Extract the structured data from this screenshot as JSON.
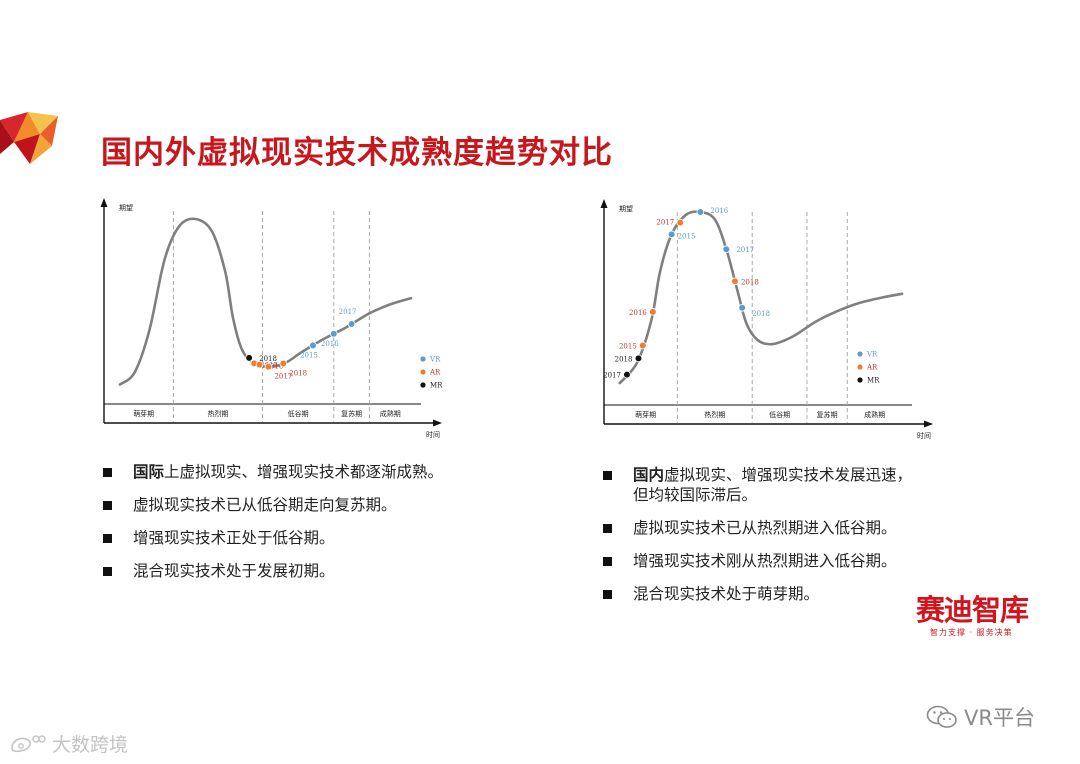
{
  "title": "国内外虚拟现实技术成熟度趋势对比",
  "legend_labels": [
    "VR",
    "AR",
    "MR"
  ],
  "colors": {
    "title": "#c8161d",
    "VR": "#5b9bd5",
    "AR": "#ed7d31",
    "MR": "#111111",
    "curve": "#7f7f7f",
    "vr_label": "#5b9bd5",
    "ar_label": "#c0392b",
    "mr_label": "#222222"
  },
  "chart_data": [
    {
      "type": "line",
      "title": "",
      "ylabel": "期望",
      "xlabel": "时间",
      "phases": [
        "萌芽期",
        "热烈期",
        "低谷期",
        "复苏期",
        "成熟期"
      ],
      "phase_bounds": [
        0,
        0.2,
        0.5,
        0.74,
        0.86,
        1
      ],
      "curve": [
        [
          0.02,
          0.07
        ],
        [
          0.07,
          0.14
        ],
        [
          0.12,
          0.38
        ],
        [
          0.17,
          0.77
        ],
        [
          0.22,
          0.96
        ],
        [
          0.275,
          1
        ],
        [
          0.33,
          0.93
        ],
        [
          0.375,
          0.7
        ],
        [
          0.4,
          0.45
        ],
        [
          0.43,
          0.27
        ],
        [
          0.47,
          0.19
        ],
        [
          0.52,
          0.17
        ],
        [
          0.575,
          0.19
        ],
        [
          0.63,
          0.25
        ],
        [
          0.7,
          0.32
        ],
        [
          0.78,
          0.39
        ],
        [
          0.86,
          0.47
        ],
        [
          0.93,
          0.52
        ],
        [
          1.0,
          0.555
        ]
      ],
      "series": [
        {
          "name": "VR",
          "points": [
            {
              "label": "2015",
              "t": 0.67
            },
            {
              "label": "2016",
              "t": 0.74
            },
            {
              "label": "2017",
              "t": 0.8
            }
          ]
        },
        {
          "name": "AR",
          "points": [
            {
              "label": "2015",
              "t": 0.472
            },
            {
              "label": "2016",
              "t": 0.49
            },
            {
              "label": "2017",
              "t": 0.52
            },
            {
              "label": "2018",
              "t": 0.57
            }
          ]
        },
        {
          "name": "MR",
          "points": [
            {
              "label": "2018",
              "t": 0.455
            }
          ]
        }
      ],
      "grid": false,
      "legend": "right"
    },
    {
      "type": "line",
      "title": "",
      "ylabel": "期望",
      "xlabel": "时间",
      "phases": [
        "萌芽期",
        "热烈期",
        "低谷期",
        "复苏期",
        "成熟期"
      ],
      "phase_bounds": [
        0,
        0.22,
        0.48,
        0.67,
        0.81,
        1
      ],
      "curve": [
        [
          0.02,
          0.08
        ],
        [
          0.08,
          0.19
        ],
        [
          0.13,
          0.42
        ],
        [
          0.16,
          0.68
        ],
        [
          0.2,
          0.88
        ],
        [
          0.25,
          0.985
        ],
        [
          0.3,
          1
        ],
        [
          0.35,
          0.96
        ],
        [
          0.39,
          0.8
        ],
        [
          0.43,
          0.57
        ],
        [
          0.46,
          0.4
        ],
        [
          0.5,
          0.31
        ],
        [
          0.55,
          0.29
        ],
        [
          0.62,
          0.33
        ],
        [
          0.7,
          0.41
        ],
        [
          0.78,
          0.47
        ],
        [
          0.85,
          0.51
        ],
        [
          0.93,
          0.54
        ],
        [
          1.0,
          0.56
        ]
      ],
      "series": [
        {
          "name": "VR",
          "points": [
            {
              "label": "2015",
              "t": 0.2
            },
            {
              "label": "2016",
              "t": 0.3
            },
            {
              "label": "2017",
              "t": 0.39
            },
            {
              "label": "2018",
              "t": 0.445
            }
          ]
        },
        {
          "name": "AR",
          "points": [
            {
              "label": "2015",
              "t": 0.1
            },
            {
              "label": "2016",
              "t": 0.135
            },
            {
              "label": "2017",
              "t": 0.23
            },
            {
              "label": "2018",
              "t": 0.42
            }
          ]
        },
        {
          "name": "MR",
          "points": [
            {
              "label": "2017",
              "t": 0.045
            },
            {
              "label": "2018",
              "t": 0.085
            }
          ]
        }
      ],
      "grid": false,
      "legend": "right"
    }
  ],
  "bullets_left": [
    {
      "strong": "国际",
      "text": "上虚拟现实、增强现实技术都逐渐成熟。",
      "cont": ""
    },
    {
      "strong": "",
      "text": "虚拟现实技术已从低谷期走向复苏期。",
      "cont": ""
    },
    {
      "strong": "",
      "text": "增强现实技术正处于低谷期。",
      "cont": ""
    },
    {
      "strong": "",
      "text": "混合现实技术处于发展初期。",
      "cont": ""
    }
  ],
  "bullets_right": [
    {
      "strong": "国内",
      "text": "虚拟现实、增强现实技术发展迅速，",
      "cont": "但均较国际滞后。"
    },
    {
      "strong": "",
      "text": "虚拟现实技术已从热烈期进入低谷期。",
      "cont": ""
    },
    {
      "strong": "",
      "text": "增强现实技术刚从热烈期进入低谷期。",
      "cont": ""
    },
    {
      "strong": "",
      "text": "混合现实技术处于萌芽期。",
      "cont": ""
    }
  ],
  "brand": {
    "name": "赛迪智库",
    "slogan": "智力支撑 · 服务决策"
  },
  "wechat": {
    "icon": "wechat-icon",
    "text": "VR平台"
  },
  "watermark": {
    "icon": "weibo-icon",
    "text": "大数跨境"
  }
}
